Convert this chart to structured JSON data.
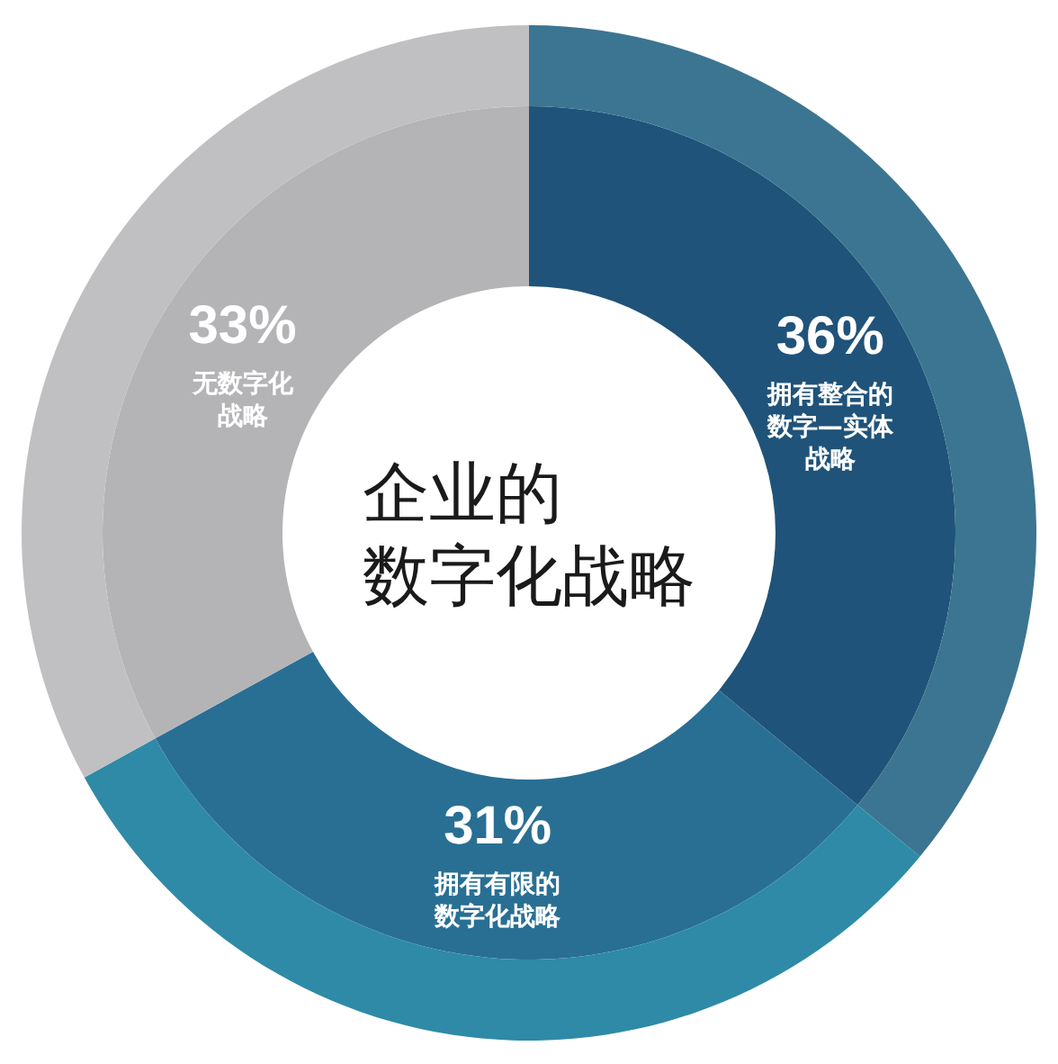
{
  "chart_data": {
    "type": "donut",
    "title": "企业的数字化战略",
    "categories": [
      "拥有整合的数字—实体战略",
      "拥有有限的数字化战略",
      "无数字化战略"
    ],
    "series": [
      {
        "values": [
          36,
          31,
          33
        ],
        "value_labels": [
          "36%",
          "31%",
          "33%"
        ],
        "colors": [
          "#20537a",
          "#296f94",
          "#b4b4b6"
        ]
      },
      {
        "values": [
          36,
          31,
          33
        ],
        "colors": [
          "#3c7591",
          "#2e8aa7",
          "#c0c0c2"
        ]
      }
    ]
  }
}
